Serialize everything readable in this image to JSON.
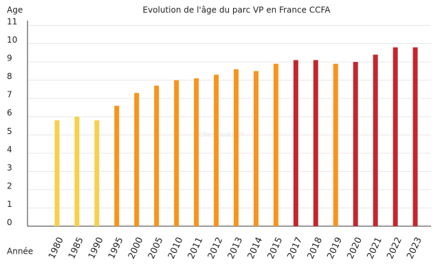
{
  "chart_data": {
    "type": "bar",
    "title": "Evolution de l'âge du parc VP en France CCFA",
    "y_label": "Age",
    "x_label": "Année",
    "annotation": "Fiches-auto.fr",
    "categories": [
      "1980",
      "1985",
      "1990",
      "1995",
      "2000",
      "2005",
      "2010",
      "2011",
      "2012",
      "2013",
      "2014",
      "2015",
      "2017",
      "2018",
      "2019",
      "2020",
      "2021",
      "2022",
      "2023"
    ],
    "values": [
      5.8,
      6.0,
      5.8,
      6.6,
      7.3,
      7.7,
      8.0,
      8.1,
      8.3,
      8.6,
      8.5,
      8.9,
      9.1,
      9.1,
      8.9,
      9.0,
      9.4,
      9.8,
      9.8
    ],
    "colors": [
      "#f7d04c",
      "#f7d04c",
      "#f7d04c",
      "#f7941d",
      "#f7941d",
      "#f7941d",
      "#f7941d",
      "#f7941d",
      "#f7941d",
      "#f7941d",
      "#f7941d",
      "#f7941d",
      "#c1272d",
      "#c1272d",
      "#f7941d",
      "#c1272d",
      "#c1272d",
      "#c1272d",
      "#c1272d"
    ],
    "ylim": [
      0,
      11
    ],
    "yticks": [
      0,
      1,
      2,
      3,
      4,
      5,
      6,
      7,
      8,
      9,
      10,
      11
    ],
    "grid": true
  }
}
